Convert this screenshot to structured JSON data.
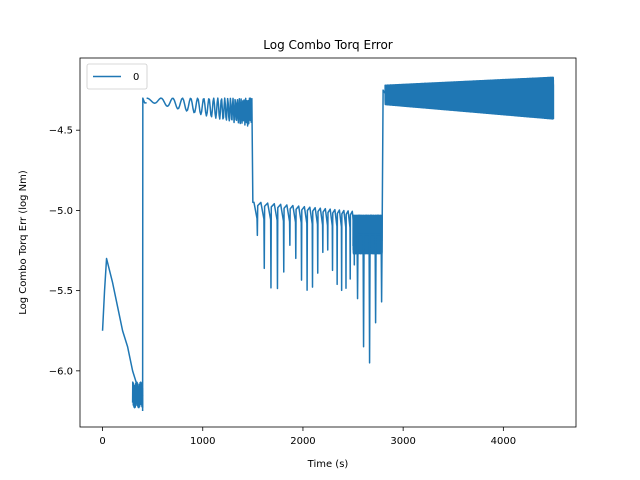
{
  "chart_data": {
    "type": "line",
    "title": "Log Combo Torq Error",
    "xlabel": "Time (s)",
    "ylabel": "Log Combo Torq Err (log Nm)",
    "xlim": [
      -225,
      4725
    ],
    "ylim": [
      -6.35,
      -4.05
    ],
    "xticks": [
      0,
      1000,
      2000,
      3000,
      4000
    ],
    "yticks": [
      -6.0,
      -5.5,
      -5.0,
      -4.5
    ],
    "xtick_labels": [
      "0",
      "1000",
      "2000",
      "3000",
      "4000"
    ],
    "ytick_labels": [
      "−6.0",
      "−5.5",
      "−5.0",
      "−4.5"
    ],
    "grid": false,
    "legend_position": "top-left",
    "series": [
      {
        "name": "0",
        "color": "#1f77b4",
        "segments": [
          {
            "type": "points",
            "x": [
              0,
              20,
              40,
              60,
              80,
              100,
              150,
              200,
              250,
              300,
              350,
              380,
              400
            ],
            "y": [
              -5.75,
              -5.5,
              -5.3,
              -5.35,
              -5.4,
              -5.45,
              -5.6,
              -5.75,
              -5.85,
              -6.0,
              -6.1,
              -6.2,
              -6.15
            ]
          },
          {
            "type": "noise",
            "x0": 300,
            "x1": 400,
            "center": -6.15,
            "amp": 0.08,
            "freq": 0.6
          },
          {
            "type": "points",
            "x": [
              400,
              402,
              420,
              440
            ],
            "y": [
              -6.25,
              -4.3,
              -4.33,
              -4.33
            ]
          },
          {
            "type": "decay",
            "x0": 440,
            "x1": 1490,
            "center": -4.3,
            "amp_start": 0.01,
            "amp_end": 0.09,
            "period_start": 160,
            "period_end": 40
          },
          {
            "type": "points",
            "x": [
              1490,
              1500,
              1510
            ],
            "y": [
              -4.3,
              -4.95,
              -4.95
            ]
          },
          {
            "type": "spikes",
            "x0": 1510,
            "x1": 2500,
            "center_start": -4.97,
            "center_end": -5.03,
            "amp": 0.08,
            "spike_min": -5.5,
            "period_start": 70,
            "period_end": 40
          },
          {
            "type": "noise",
            "x0": 2500,
            "x1": 2790,
            "center": -5.15,
            "amp": 0.12,
            "freq": 2.5
          },
          {
            "type": "points",
            "x": [
              2540,
              2545,
              2550,
              2600,
              2605,
              2610,
              2660,
              2665,
              2670,
              2720,
              2725,
              2730,
              2780,
              2785,
              2790
            ],
            "y": [
              -5.15,
              -5.55,
              -5.15,
              -5.15,
              -5.85,
              -5.15,
              -5.15,
              -5.95,
              -5.15,
              -5.15,
              -5.7,
              -5.15,
              -5.15,
              -5.57,
              -5.15
            ]
          },
          {
            "type": "points",
            "x": [
              2790,
              2800,
              2820
            ],
            "y": [
              -5.15,
              -4.25,
              -4.27
            ]
          },
          {
            "type": "noise",
            "x0": 2820,
            "x1": 4500,
            "center": -4.28,
            "amp": 0.06,
            "amp_end": 0.13,
            "center_end": -4.3,
            "freq": 6
          }
        ]
      }
    ]
  }
}
